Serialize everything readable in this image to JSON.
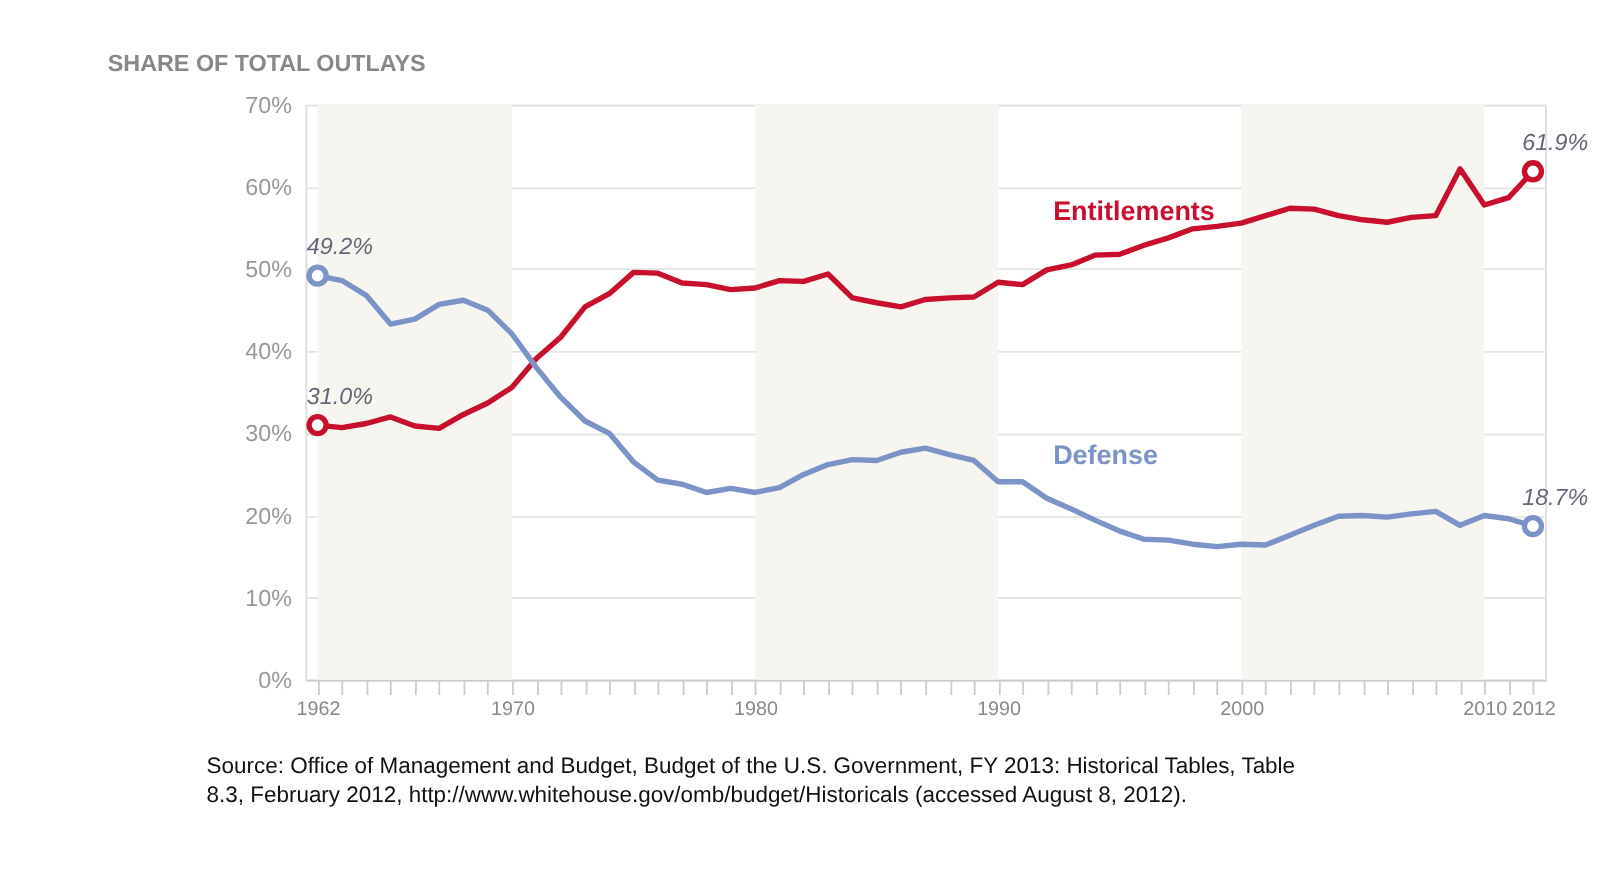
{
  "chart_data": {
    "type": "line",
    "title": "SHARE OF TOTAL OUTLAYS",
    "x": [
      1962,
      1963,
      1964,
      1965,
      1966,
      1967,
      1968,
      1969,
      1970,
      1971,
      1972,
      1973,
      1974,
      1975,
      1976,
      1977,
      1978,
      1979,
      1980,
      1981,
      1982,
      1983,
      1984,
      1985,
      1986,
      1987,
      1988,
      1989,
      1990,
      1991,
      1992,
      1993,
      1994,
      1995,
      1996,
      1997,
      1998,
      1999,
      2000,
      2001,
      2002,
      2003,
      2004,
      2005,
      2006,
      2007,
      2008,
      2009,
      2010,
      2011,
      2012
    ],
    "series": [
      {
        "name": "Entitlements",
        "color": "#c8102e",
        "values": [
          31.0,
          30.7,
          31.2,
          32.0,
          30.9,
          30.6,
          32.3,
          33.7,
          35.6,
          39.1,
          41.7,
          45.4,
          47.0,
          49.6,
          49.5,
          48.3,
          48.1,
          47.5,
          47.7,
          48.6,
          48.5,
          49.4,
          46.5,
          45.9,
          45.4,
          46.3,
          46.5,
          46.6,
          48.4,
          48.1,
          49.9,
          50.5,
          51.7,
          51.8,
          52.9,
          53.8,
          54.9,
          55.2,
          55.6,
          56.5,
          57.4,
          57.3,
          56.5,
          56.0,
          55.7,
          56.3,
          56.5,
          62.2,
          57.8,
          58.7,
          61.9
        ],
        "value_labels": [
          "31.0%",
          null,
          null,
          null,
          null,
          null,
          null,
          null,
          null,
          null,
          null,
          null,
          null,
          null,
          null,
          null,
          null,
          null,
          null,
          null,
          null,
          null,
          null,
          null,
          null,
          null,
          null,
          null,
          null,
          null,
          null,
          null,
          null,
          null,
          null,
          null,
          null,
          null,
          null,
          null,
          null,
          null,
          null,
          null,
          null,
          null,
          null,
          null,
          null,
          null,
          "61.9%"
        ]
      },
      {
        "name": "Defense",
        "color": "#7b93c7",
        "values": [
          49.2,
          48.6,
          46.8,
          43.3,
          43.9,
          45.7,
          46.2,
          45.0,
          42.1,
          38.0,
          34.4,
          31.5,
          30.0,
          26.5,
          24.3,
          23.8,
          22.8,
          23.3,
          22.8,
          23.4,
          25.0,
          26.2,
          26.8,
          26.7,
          27.7,
          28.2,
          27.4,
          26.7,
          24.1,
          24.1,
          22.1,
          20.8,
          19.4,
          18.1,
          17.1,
          17.0,
          16.5,
          16.2,
          16.5,
          16.4,
          17.6,
          18.8,
          19.9,
          20.0,
          19.8,
          20.2,
          20.5,
          18.8,
          20.0,
          19.6,
          18.7
        ],
        "value_labels": [
          "49.2%",
          null,
          null,
          null,
          null,
          null,
          null,
          null,
          null,
          null,
          null,
          null,
          null,
          null,
          null,
          null,
          null,
          null,
          null,
          null,
          null,
          null,
          null,
          null,
          null,
          null,
          null,
          null,
          null,
          null,
          null,
          null,
          null,
          null,
          null,
          null,
          null,
          null,
          null,
          null,
          null,
          null,
          null,
          null,
          null,
          null,
          null,
          null,
          null,
          null,
          "18.7%"
        ]
      }
    ],
    "xlim": [
      1961.5,
      2012.5
    ],
    "xticks": [
      1962,
      {
        "value": 1963,
        "label": null
      },
      {
        "value": 1964,
        "label": null
      },
      {
        "value": 1965,
        "label": null
      },
      {
        "value": 1966,
        "label": null
      },
      {
        "value": 1967,
        "label": null
      },
      {
        "value": 1968,
        "label": null
      },
      {
        "value": 1969,
        "label": null
      },
      1970,
      {
        "value": 1971,
        "label": null
      },
      {
        "value": 1972,
        "label": null
      },
      {
        "value": 1973,
        "label": null
      },
      {
        "value": 1974,
        "label": null
      },
      {
        "value": 1975,
        "label": null
      },
      {
        "value": 1976,
        "label": null
      },
      {
        "value": 1977,
        "label": null
      },
      {
        "value": 1978,
        "label": null
      },
      {
        "value": 1979,
        "label": null
      },
      1980,
      {
        "value": 1981,
        "label": null
      },
      {
        "value": 1982,
        "label": null
      },
      {
        "value": 1983,
        "label": null
      },
      {
        "value": 1984,
        "label": null
      },
      {
        "value": 1985,
        "label": null
      },
      {
        "value": 1986,
        "label": null
      },
      {
        "value": 1987,
        "label": null
      },
      {
        "value": 1988,
        "label": null
      },
      {
        "value": 1989,
        "label": null
      },
      1990,
      {
        "value": 1991,
        "label": null
      },
      {
        "value": 1992,
        "label": null
      },
      {
        "value": 1993,
        "label": null
      },
      {
        "value": 1994,
        "label": null
      },
      {
        "value": 1995,
        "label": null
      },
      {
        "value": 1996,
        "label": null
      },
      {
        "value": 1997,
        "label": null
      },
      {
        "value": 1998,
        "label": null
      },
      {
        "value": 1999,
        "label": null
      },
      2000,
      {
        "value": 2001,
        "label": null
      },
      {
        "value": 2002,
        "label": null
      },
      {
        "value": 2003,
        "label": null
      },
      {
        "value": 2004,
        "label": null
      },
      {
        "value": 2005,
        "label": null
      },
      {
        "value": 2006,
        "label": null
      },
      {
        "value": 2007,
        "label": null
      },
      {
        "value": 2008,
        "label": null
      },
      {
        "value": 2009,
        "label": null
      },
      2010,
      {
        "value": 2011,
        "label": null
      },
      2012
    ],
    "ylim": [
      0,
      70
    ],
    "yticks": [
      {
        "value": 0,
        "label": "0%"
      },
      {
        "value": 10,
        "label": "10%"
      },
      {
        "value": 20,
        "label": "20%"
      },
      {
        "value": 30,
        "label": "30%"
      },
      {
        "value": 40,
        "label": "40%"
      },
      {
        "value": 50,
        "label": "50%"
      },
      {
        "value": 60,
        "label": "60%"
      },
      {
        "value": 70,
        "label": "70%"
      }
    ],
    "bands": [
      {
        "axis": "x",
        "from": 1962,
        "to": 1970,
        "color": "#f6f5ef"
      },
      {
        "axis": "x",
        "from": 1980,
        "to": 1990,
        "color": "#f6f5ef"
      },
      {
        "axis": "x",
        "from": 2000,
        "to": 2010,
        "color": "#f6f5ef"
      }
    ],
    "grid": "y",
    "legend": false,
    "line_style": "solid",
    "annotations": [
      "Source: Office of Management and Budget, Budget of the U.S. Government, FY 2013: Historical Tables, Table 8.3, February 2012, http://www.whitehouse.gov/omb/budget/Historicals (accessed August 8, 2012)."
    ]
  }
}
